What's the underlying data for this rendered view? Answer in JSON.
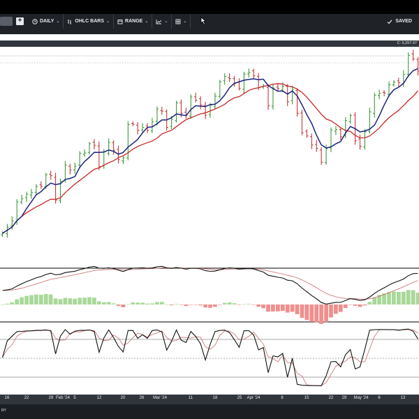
{
  "toolbar": {
    "interval": "DAILY",
    "chart_type": "OHLC BARS",
    "range": "RANGE",
    "save_status": "SAVED"
  },
  "price_panel": {
    "last_price_label": "C: 5,257.97"
  },
  "bottom_bar": {
    "text": "RY"
  },
  "xaxis": {
    "labels": [
      "16",
      "22",
      "29",
      "Feb '24",
      "5",
      "12",
      "20",
      "26",
      "Mar '24",
      "11",
      "18",
      "25",
      "Apr '24",
      "8",
      "15",
      "22",
      "29",
      "May '24",
      "6",
      "13"
    ]
  },
  "colors": {
    "up_bar": "#3f9a3a",
    "down_bar": "#c23a3a",
    "fast_ma": "#1a237e",
    "slow_ma": "#c62828",
    "hist_up": "#a9d89a",
    "hist_down": "#ef8f8f",
    "toolbar_bg": "#1f2328"
  },
  "icons": [
    "plus-icon",
    "clock-icon",
    "bars-icon",
    "calendar-icon",
    "line-chart-icon",
    "grid-icon",
    "checkmark-icon",
    "cursor-icon"
  ],
  "chart_data": {
    "type": "ohlc",
    "x": [
      "Jan 16",
      "Jan 17",
      "Jan 18",
      "Jan 19",
      "Jan 22",
      "Jan 23",
      "Jan 24",
      "Jan 25",
      "Jan 26",
      "Jan 29",
      "Jan 30",
      "Jan 31",
      "Feb 1",
      "Feb 2",
      "Feb 5",
      "Feb 6",
      "Feb 7",
      "Feb 8",
      "Feb 9",
      "Feb 12",
      "Feb 13",
      "Feb 14",
      "Feb 15",
      "Feb 16",
      "Feb 20",
      "Feb 21",
      "Feb 22",
      "Feb 23",
      "Feb 26",
      "Feb 27",
      "Feb 28",
      "Feb 29",
      "Mar 1",
      "Mar 4",
      "Mar 5",
      "Mar 6",
      "Mar 7",
      "Mar 8",
      "Mar 11",
      "Mar 12",
      "Mar 13",
      "Mar 14",
      "Mar 15",
      "Mar 18",
      "Mar 19",
      "Mar 20",
      "Mar 21",
      "Mar 22",
      "Mar 25",
      "Mar 26",
      "Mar 27",
      "Mar 28",
      "Apr 1",
      "Apr 2",
      "Apr 3",
      "Apr 4",
      "Apr 5",
      "Apr 8",
      "Apr 9",
      "Apr 10",
      "Apr 11",
      "Apr 12",
      "Apr 15",
      "Apr 16",
      "Apr 17",
      "Apr 18",
      "Apr 19",
      "Apr 22",
      "Apr 23",
      "Apr 24",
      "Apr 25",
      "Apr 26",
      "Apr 29",
      "Apr 30",
      "May 1",
      "May 2",
      "May 3",
      "May 6",
      "May 7",
      "May 8",
      "May 9",
      "May 10",
      "May 13",
      "May 14",
      "May 15",
      "May 16",
      "May 17"
    ],
    "close": [
      4740,
      4760,
      4780,
      4840,
      4850,
      4865,
      4870,
      4890,
      4890,
      4927,
      4924,
      4846,
      4906,
      4958,
      4942,
      4954,
      4995,
      4997,
      5026,
      5021,
      4953,
      5000,
      5030,
      5005,
      4975,
      4981,
      5087,
      5088,
      5069,
      5078,
      5069,
      5096,
      5137,
      5130,
      5078,
      5104,
      5157,
      5123,
      5117,
      5175,
      5165,
      5150,
      5117,
      5149,
      5178,
      5224,
      5241,
      5234,
      5218,
      5203,
      5248,
      5254,
      5243,
      5205,
      5211,
      5147,
      5204,
      5202,
      5209,
      5160,
      5199,
      5123,
      5061,
      5051,
      5022,
      5011,
      4967,
      5010,
      5070,
      5071,
      5048,
      5100,
      5116,
      5036,
      5018,
      5064,
      5128,
      5181,
      5187,
      5188,
      5214,
      5223,
      5221,
      5247,
      5308,
      5297,
      5258
    ],
    "series": [
      {
        "name": "",
        "kind": "fast_ma"
      },
      {
        "name": "",
        "kind": "slow_ma"
      }
    ],
    "panels": [
      "price",
      "macd",
      "oscillator"
    ]
  }
}
